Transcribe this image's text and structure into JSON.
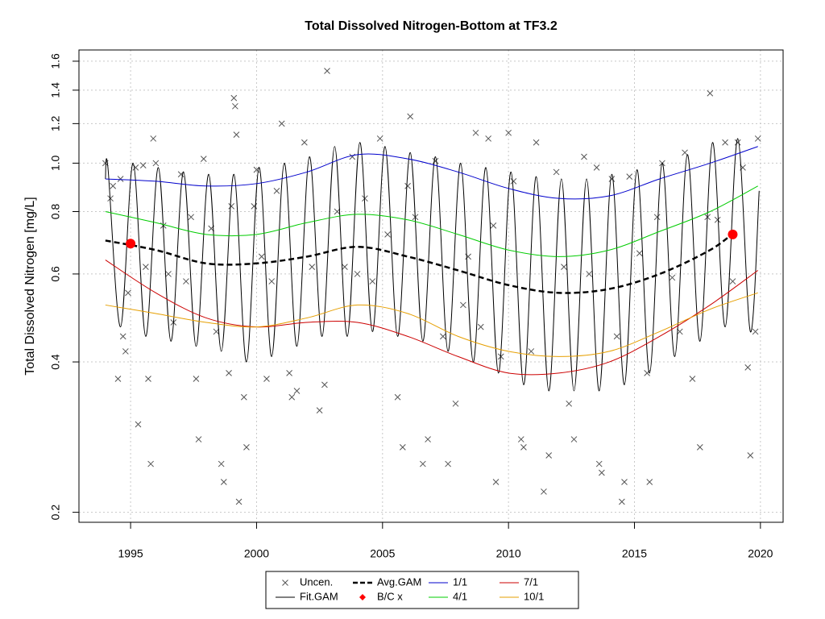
{
  "chart_data": {
    "type": "line",
    "title": "Total Dissolved Nitrogen-Bottom at TF3.2",
    "y_label": "Total Dissolved Nitrogen [mg/L]",
    "xlim": [
      1992.95,
      2020.9
    ],
    "ylim": [
      0.191,
      1.685
    ],
    "y_log": true,
    "grid": true,
    "legend": "bottom",
    "xticks": [
      1995,
      2000,
      2005,
      2010,
      2015,
      2020
    ],
    "yticks": [
      0.2,
      0.4,
      0.6,
      0.8,
      {
        "value": 1,
        "label": "1.0"
      },
      1.2,
      1.4,
      1.6
    ],
    "series": [
      {
        "name": "Uncen.",
        "color": "#555555",
        "style": "points",
        "x": [
          1994.0,
          1994.2,
          1994.3,
          1994.5,
          1994.6,
          1994.7,
          1994.8,
          1994.9,
          1995.2,
          1995.3,
          1995.5,
          1995.6,
          1995.7,
          1995.8,
          1995.9,
          1996.0,
          1996.3,
          1996.5,
          1996.7,
          1997.0,
          1997.2,
          1997.4,
          1997.6,
          1997.7,
          1997.9,
          1998.2,
          1998.4,
          1998.6,
          1998.7,
          1998.9,
          1999.0,
          1999.1,
          1999.15,
          1999.2,
          1999.3,
          1999.5,
          1999.6,
          1999.9,
          2000.0,
          2000.2,
          2000.4,
          2000.6,
          2000.8,
          2001.0,
          2001.3,
          2001.4,
          2001.6,
          2001.9,
          2002.2,
          2002.5,
          2002.7,
          2002.8,
          2003.2,
          2003.5,
          2003.8,
          2004.0,
          2004.3,
          2004.6,
          2004.9,
          2005.2,
          2005.6,
          2005.8,
          2006.0,
          2006.1,
          2006.3,
          2006.6,
          2006.8,
          2007.1,
          2007.4,
          2007.6,
          2007.9,
          2008.2,
          2008.4,
          2008.7,
          2008.9,
          2009.2,
          2009.4,
          2009.5,
          2009.7,
          2010.0,
          2010.2,
          2010.5,
          2010.6,
          2010.9,
          2011.1,
          2011.4,
          2011.6,
          2011.9,
          2012.2,
          2012.4,
          2012.6,
          2013.0,
          2013.2,
          2013.5,
          2013.6,
          2013.7,
          2014.1,
          2014.3,
          2014.5,
          2014.6,
          2014.8,
          2015.2,
          2015.5,
          2015.6,
          2015.9,
          2016.1,
          2016.5,
          2016.8,
          2017.0,
          2017.3,
          2017.6,
          2017.9,
          2018.0,
          2018.3,
          2018.6,
          2018.9,
          2019.1,
          2019.3,
          2019.5,
          2019.6,
          2019.8,
          2019.9
        ],
        "values": [
          1.0,
          0.85,
          0.9,
          0.37,
          0.93,
          0.45,
          0.42,
          0.55,
          0.98,
          0.3,
          0.99,
          0.62,
          0.37,
          0.25,
          1.12,
          1.0,
          0.75,
          0.6,
          0.48,
          0.95,
          0.58,
          0.78,
          0.37,
          0.28,
          1.02,
          0.74,
          0.46,
          0.25,
          0.23,
          0.38,
          0.82,
          1.35,
          1.3,
          1.14,
          0.21,
          0.34,
          0.27,
          0.82,
          0.97,
          0.65,
          0.37,
          0.58,
          0.88,
          1.2,
          0.38,
          0.34,
          0.35,
          1.1,
          0.62,
          0.32,
          0.36,
          1.53,
          0.8,
          0.62,
          1.03,
          0.6,
          0.85,
          0.58,
          1.12,
          0.72,
          0.34,
          0.27,
          0.9,
          1.24,
          0.78,
          0.25,
          0.28,
          1.01,
          0.45,
          0.25,
          0.33,
          0.52,
          0.65,
          1.15,
          0.47,
          1.12,
          0.75,
          0.23,
          0.41,
          1.15,
          0.92,
          0.28,
          0.27,
          0.42,
          1.1,
          0.22,
          0.26,
          0.96,
          0.62,
          0.33,
          0.28,
          1.03,
          0.6,
          0.98,
          0.25,
          0.24,
          0.93,
          0.45,
          0.21,
          0.23,
          0.94,
          0.66,
          0.38,
          0.23,
          0.78,
          1.0,
          0.59,
          0.46,
          1.05,
          0.37,
          0.27,
          0.78,
          1.38,
          0.77,
          1.1,
          0.58,
          1.1,
          0.98,
          0.39,
          0.26,
          0.46,
          1.12
        ]
      },
      {
        "name": "Fit.GAM",
        "color": "#000000",
        "style": "line",
        "x": [
          1994.0,
          1994.1,
          1994.6,
          1995.1,
          1995.6,
          1996.1,
          1996.6,
          1997.1,
          1997.6,
          1998.1,
          1998.6,
          1999.1,
          1999.6,
          2000.1,
          2000.6,
          2001.1,
          2001.6,
          2002.1,
          2002.6,
          2003.1,
          2003.6,
          2004.1,
          2004.6,
          2005.1,
          2005.6,
          2006.1,
          2006.6,
          2007.1,
          2007.6,
          2008.1,
          2008.6,
          2009.1,
          2009.6,
          2010.1,
          2010.6,
          2011.1,
          2011.6,
          2012.1,
          2012.6,
          2013.1,
          2013.6,
          2014.1,
          2014.6,
          2015.1,
          2015.6,
          2016.1,
          2016.6,
          2017.1,
          2017.6,
          2018.1,
          2018.6,
          2019.1,
          2019.6,
          2019.95
        ],
        "values": [
          0.93,
          0.98,
          0.47,
          1.0,
          0.45,
          0.98,
          0.44,
          0.96,
          0.43,
          0.95,
          0.42,
          0.95,
          0.4,
          0.98,
          0.41,
          1.0,
          0.43,
          1.03,
          0.45,
          1.08,
          0.45,
          1.1,
          0.46,
          1.08,
          0.45,
          1.05,
          0.44,
          1.03,
          0.42,
          1.0,
          0.4,
          0.98,
          0.38,
          0.96,
          0.36,
          0.94,
          0.35,
          0.93,
          0.35,
          0.93,
          0.35,
          0.95,
          0.36,
          0.97,
          0.38,
          1.0,
          0.41,
          1.04,
          0.44,
          1.1,
          0.47,
          1.12,
          0.46,
          0.88
        ]
      },
      {
        "name": "Avg.GAM",
        "color": "#000000",
        "style": "dashed",
        "x": [
          1994,
          1996,
          1998,
          2000,
          2002,
          2004,
          2006,
          2008,
          2010,
          2012,
          2014,
          2016,
          2018,
          2019
        ],
        "values": [
          0.7,
          0.67,
          0.63,
          0.63,
          0.65,
          0.68,
          0.65,
          0.61,
          0.57,
          0.55,
          0.56,
          0.6,
          0.67,
          0.73
        ]
      },
      {
        "name": "B/C x",
        "color": "#ff0000",
        "style": "dots",
        "x": [
          1995.0,
          2018.9
        ],
        "values": [
          0.69,
          0.72
        ]
      },
      {
        "name": "1/1",
        "color": "#0000cc",
        "style": "line",
        "x": [
          1994,
          1996,
          1998,
          2000,
          2002,
          2004,
          2006,
          2008,
          2010,
          2012,
          2014,
          2016,
          2018,
          2019.9
        ],
        "values": [
          0.93,
          0.92,
          0.9,
          0.91,
          0.96,
          1.04,
          1.02,
          0.96,
          0.89,
          0.85,
          0.86,
          0.93,
          1.0,
          1.08
        ]
      },
      {
        "name": "4/1",
        "color": "#00cc00",
        "style": "line",
        "x": [
          1994,
          1996,
          1998,
          2000,
          2002,
          2004,
          2006,
          2008,
          2010,
          2012,
          2014,
          2016,
          2018,
          2019.9
        ],
        "values": [
          0.8,
          0.76,
          0.72,
          0.72,
          0.76,
          0.79,
          0.77,
          0.72,
          0.67,
          0.65,
          0.67,
          0.73,
          0.8,
          0.9
        ]
      },
      {
        "name": "7/1",
        "color": "#cc0000",
        "style": "line",
        "x": [
          1994,
          1996,
          1998,
          2000,
          2002,
          2004,
          2006,
          2008,
          2010,
          2012,
          2014,
          2016,
          2018,
          2019.9
        ],
        "values": [
          0.64,
          0.55,
          0.49,
          0.47,
          0.48,
          0.48,
          0.45,
          0.41,
          0.38,
          0.38,
          0.4,
          0.45,
          0.52,
          0.61
        ]
      },
      {
        "name": "10/1",
        "color": "#e69f00",
        "style": "line",
        "x": [
          1994,
          1996,
          1998,
          2000,
          2002,
          2004,
          2006,
          2008,
          2010,
          2012,
          2014,
          2016,
          2018,
          2019.9
        ],
        "values": [
          0.52,
          0.5,
          0.48,
          0.47,
          0.49,
          0.52,
          0.5,
          0.45,
          0.42,
          0.41,
          0.42,
          0.46,
          0.51,
          0.55
        ]
      }
    ]
  }
}
